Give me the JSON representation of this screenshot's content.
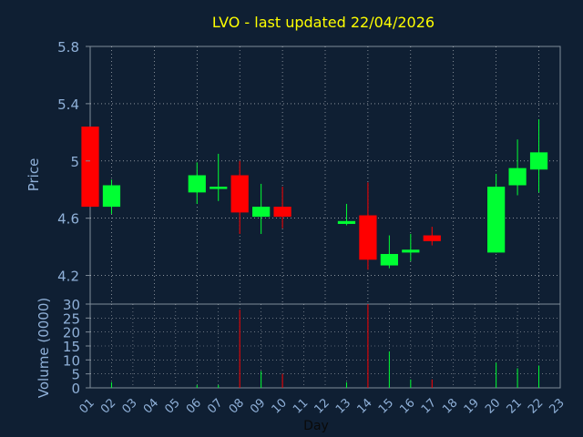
{
  "chart_data": {
    "type": "candlestick",
    "title": "LVO - last updated 22/04/2026",
    "xlabel": "Day",
    "ylabel": "Price",
    "volume_label": "Volume (0000)",
    "ylim": [
      4.0,
      5.8
    ],
    "yticks": [
      "4.2",
      "4.6",
      "5",
      "5.4",
      "5.8"
    ],
    "volume_ylim": [
      0,
      30
    ],
    "volume_yticks": [
      "0",
      "5",
      "10",
      "15",
      "20",
      "25",
      "30"
    ],
    "xticks": [
      "01",
      "02",
      "03",
      "04",
      "05",
      "06",
      "07",
      "08",
      "09",
      "10",
      "11",
      "12",
      "13",
      "14",
      "15",
      "16",
      "17",
      "18",
      "19",
      "20",
      "21",
      "22",
      "23"
    ],
    "grid": true,
    "colors": {
      "up": "#00ff33",
      "down": "#ff0000",
      "title": "#ffff00",
      "axis_text": "#8fb0d8",
      "grid": "#ffffff",
      "frame": "#7f8c99",
      "background": "#0f1f33"
    },
    "candles": [
      {
        "day": "01",
        "open": 5.24,
        "high": 5.24,
        "low": 4.68,
        "close": 4.68,
        "volume": 0
      },
      {
        "day": "02",
        "open": 4.68,
        "high": 4.87,
        "low": 4.63,
        "close": 4.83,
        "volume": 2
      },
      {
        "day": "06",
        "open": 4.78,
        "high": 4.99,
        "low": 4.7,
        "close": 4.9,
        "volume": 1
      },
      {
        "day": "07",
        "open": 4.81,
        "high": 5.05,
        "low": 4.72,
        "close": 4.82,
        "volume": 1
      },
      {
        "day": "08",
        "open": 4.9,
        "high": 5.0,
        "low": 4.49,
        "close": 4.64,
        "volume": 28
      },
      {
        "day": "09",
        "open": 4.61,
        "high": 4.84,
        "low": 4.49,
        "close": 4.68,
        "volume": 6
      },
      {
        "day": "10",
        "open": 4.68,
        "high": 4.82,
        "low": 4.53,
        "close": 4.61,
        "volume": 5
      },
      {
        "day": "13",
        "open": 4.56,
        "high": 4.7,
        "low": 4.55,
        "close": 4.58,
        "volume": 2
      },
      {
        "day": "14",
        "open": 4.62,
        "high": 4.85,
        "low": 4.24,
        "close": 4.31,
        "volume": 30
      },
      {
        "day": "15",
        "open": 4.27,
        "high": 4.48,
        "low": 4.25,
        "close": 4.35,
        "volume": 13
      },
      {
        "day": "16",
        "open": 4.36,
        "high": 4.49,
        "low": 4.3,
        "close": 4.38,
        "volume": 3
      },
      {
        "day": "17",
        "open": 4.48,
        "high": 4.54,
        "low": 4.41,
        "close": 4.44,
        "volume": 3
      },
      {
        "day": "20",
        "open": 4.36,
        "high": 4.91,
        "low": 4.36,
        "close": 4.82,
        "volume": 9
      },
      {
        "day": "21",
        "open": 4.83,
        "high": 5.15,
        "low": 4.76,
        "close": 4.95,
        "volume": 7
      },
      {
        "day": "22",
        "open": 4.94,
        "high": 5.29,
        "low": 4.78,
        "close": 5.06,
        "volume": 8
      }
    ]
  }
}
